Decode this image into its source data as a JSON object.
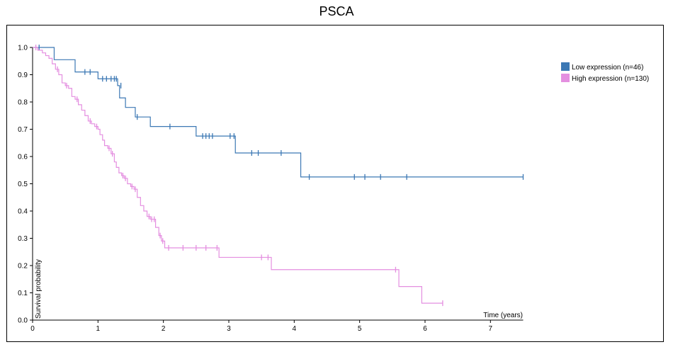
{
  "chart_data": {
    "type": "line",
    "title": "PSCA",
    "xlabel": "Time (years)",
    "ylabel": "Survival probability",
    "xlim": [
      0,
      7.5
    ],
    "ylim": [
      0,
      1.0
    ],
    "x_ticks": [
      0,
      1,
      2,
      3,
      4,
      5,
      6,
      7
    ],
    "y_ticks": [
      0.0,
      0.1,
      0.2,
      0.3,
      0.4,
      0.5,
      0.6,
      0.7,
      0.8,
      0.9,
      1.0
    ],
    "legend_position": "top-right",
    "series": [
      {
        "name": "Low expression (n=46)",
        "color": "#3c78b4",
        "steps": [
          [
            0,
            1.0
          ],
          [
            0.33,
            0.955
          ],
          [
            0.65,
            0.91
          ],
          [
            1.0,
            0.885
          ],
          [
            1.3,
            0.86
          ],
          [
            1.33,
            0.815
          ],
          [
            1.42,
            0.78
          ],
          [
            1.57,
            0.745
          ],
          [
            1.8,
            0.71
          ],
          [
            2.5,
            0.675
          ],
          [
            3.1,
            0.613
          ],
          [
            4.1,
            0.525
          ],
          [
            7.5,
            0.525
          ]
        ],
        "censored": [
          [
            0.1,
            1.0
          ],
          [
            0.8,
            0.91
          ],
          [
            0.88,
            0.91
          ],
          [
            1.07,
            0.885
          ],
          [
            1.13,
            0.885
          ],
          [
            1.2,
            0.885
          ],
          [
            1.25,
            0.885
          ],
          [
            1.28,
            0.885
          ],
          [
            1.35,
            0.86
          ],
          [
            1.6,
            0.745
          ],
          [
            2.1,
            0.71
          ],
          [
            2.6,
            0.675
          ],
          [
            2.65,
            0.675
          ],
          [
            2.7,
            0.675
          ],
          [
            2.75,
            0.675
          ],
          [
            3.02,
            0.675
          ],
          [
            3.08,
            0.675
          ],
          [
            3.35,
            0.613
          ],
          [
            3.45,
            0.613
          ],
          [
            3.8,
            0.613
          ],
          [
            4.23,
            0.525
          ],
          [
            4.92,
            0.525
          ],
          [
            5.08,
            0.525
          ],
          [
            5.32,
            0.525
          ],
          [
            5.72,
            0.525
          ],
          [
            7.5,
            0.525
          ]
        ]
      },
      {
        "name": "High expression (n=130)",
        "color": "#e48fe0",
        "steps": [
          [
            0,
            1.0
          ],
          [
            0.08,
            0.99
          ],
          [
            0.15,
            0.98
          ],
          [
            0.2,
            0.97
          ],
          [
            0.25,
            0.96
          ],
          [
            0.3,
            0.94
          ],
          [
            0.35,
            0.92
          ],
          [
            0.4,
            0.9
          ],
          [
            0.45,
            0.87
          ],
          [
            0.5,
            0.86
          ],
          [
            0.55,
            0.85
          ],
          [
            0.6,
            0.82
          ],
          [
            0.65,
            0.81
          ],
          [
            0.7,
            0.79
          ],
          [
            0.75,
            0.77
          ],
          [
            0.8,
            0.75
          ],
          [
            0.85,
            0.73
          ],
          [
            0.9,
            0.72
          ],
          [
            0.95,
            0.71
          ],
          [
            1.0,
            0.7
          ],
          [
            1.03,
            0.68
          ],
          [
            1.07,
            0.66
          ],
          [
            1.1,
            0.64
          ],
          [
            1.15,
            0.63
          ],
          [
            1.2,
            0.61
          ],
          [
            1.25,
            0.58
          ],
          [
            1.28,
            0.56
          ],
          [
            1.32,
            0.54
          ],
          [
            1.36,
            0.53
          ],
          [
            1.4,
            0.52
          ],
          [
            1.45,
            0.5
          ],
          [
            1.5,
            0.49
          ],
          [
            1.55,
            0.48
          ],
          [
            1.6,
            0.45
          ],
          [
            1.65,
            0.42
          ],
          [
            1.7,
            0.4
          ],
          [
            1.75,
            0.38
          ],
          [
            1.8,
            0.37
          ],
          [
            1.88,
            0.34
          ],
          [
            1.93,
            0.31
          ],
          [
            1.97,
            0.29
          ],
          [
            2.02,
            0.265
          ],
          [
            2.85,
            0.23
          ],
          [
            3.65,
            0.185
          ],
          [
            5.6,
            0.123
          ],
          [
            5.95,
            0.062
          ],
          [
            6.27,
            0.062
          ]
        ],
        "censored": [
          [
            0.05,
            1.0
          ],
          [
            0.38,
            0.92
          ],
          [
            0.52,
            0.86
          ],
          [
            0.68,
            0.81
          ],
          [
            0.88,
            0.73
          ],
          [
            0.98,
            0.71
          ],
          [
            1.17,
            0.63
          ],
          [
            1.22,
            0.61
          ],
          [
            1.38,
            0.53
          ],
          [
            1.42,
            0.52
          ],
          [
            1.52,
            0.49
          ],
          [
            1.57,
            0.48
          ],
          [
            1.78,
            0.38
          ],
          [
            1.82,
            0.37
          ],
          [
            1.86,
            0.37
          ],
          [
            1.95,
            0.31
          ],
          [
            1.99,
            0.29
          ],
          [
            2.08,
            0.265
          ],
          [
            2.3,
            0.265
          ],
          [
            2.5,
            0.265
          ],
          [
            2.65,
            0.265
          ],
          [
            2.82,
            0.265
          ],
          [
            3.5,
            0.23
          ],
          [
            3.6,
            0.23
          ],
          [
            5.55,
            0.185
          ],
          [
            6.27,
            0.062
          ]
        ]
      }
    ]
  }
}
